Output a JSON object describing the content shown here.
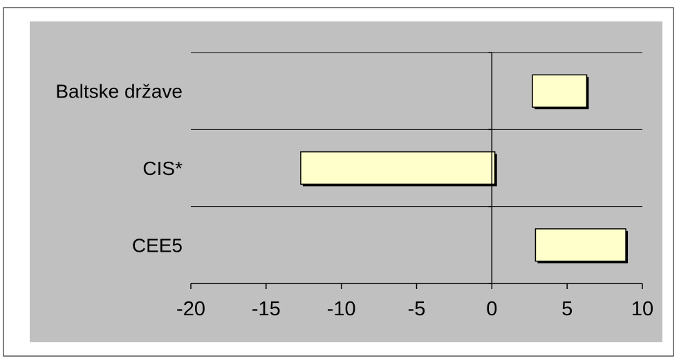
{
  "chart_data": {
    "type": "bar",
    "orientation": "horizontal",
    "categories": [
      "Baltske države",
      "CIS*",
      "CEE5"
    ],
    "series": [
      {
        "ranges": [
          [
            2.7,
            6.3
          ],
          [
            -12.7,
            0.2
          ],
          [
            2.9,
            8.9
          ]
        ]
      }
    ],
    "xlim": [
      -20,
      10
    ],
    "x_ticks": [
      "-20",
      "-15",
      "-10",
      "-5",
      "0",
      "5",
      "10"
    ],
    "title": "",
    "xlabel": "",
    "ylabel": "",
    "grid": "horizontal lines between categories",
    "legend": "none",
    "colors": {
      "bar_fill": "#ffffcc",
      "bar_stroke": "#000000",
      "plot_background": "#c0c0c0",
      "page_background": "#ffffff"
    }
  }
}
